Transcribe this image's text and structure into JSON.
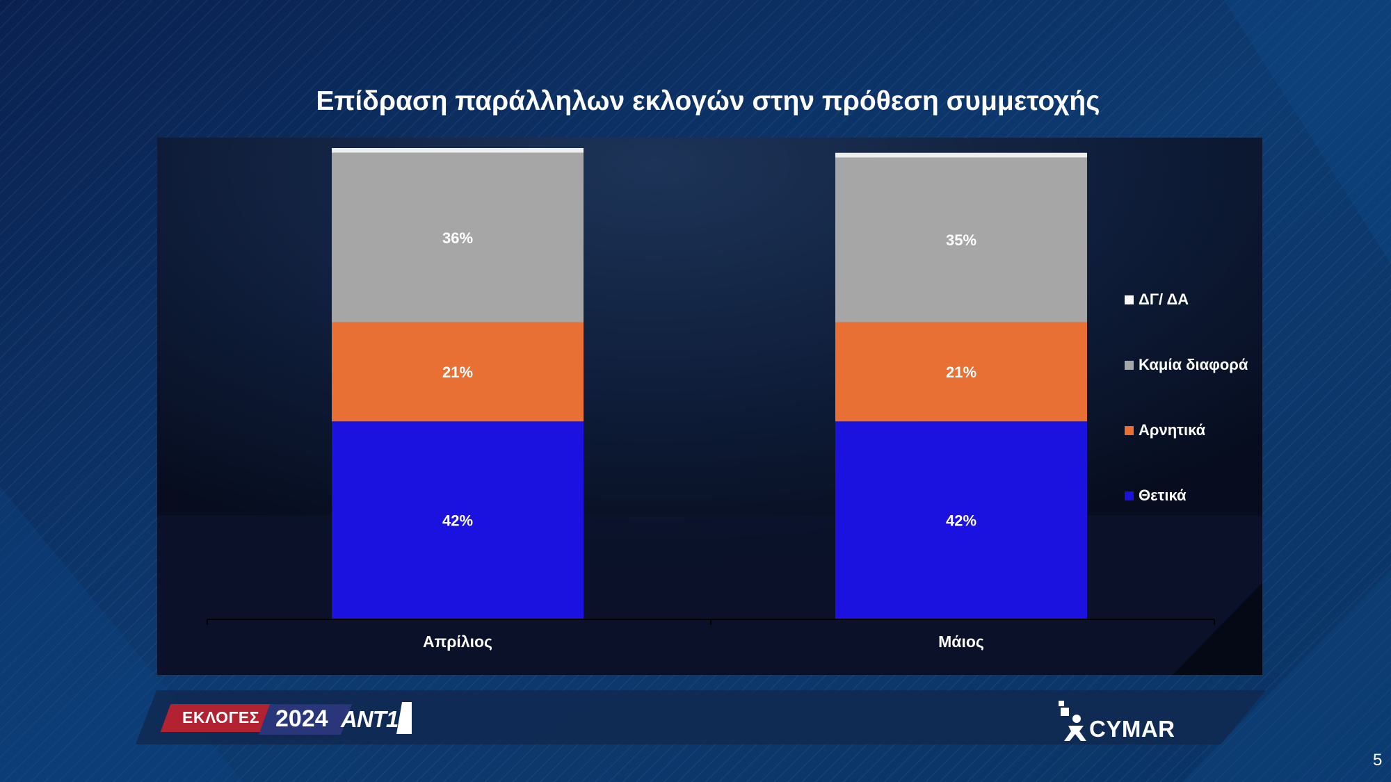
{
  "slide": {
    "title": "Επίδραση παράλληλων εκλογών στην πρόθεση συμμετοχής",
    "page_number": "5"
  },
  "chart_data": {
    "type": "bar",
    "stacked": true,
    "categories": [
      "Απρίλιος",
      "Μάιος"
    ],
    "series": [
      {
        "name": "Θετικά",
        "values": [
          42,
          42
        ],
        "color": "#1c12e0",
        "labels": [
          "42%",
          "42%"
        ]
      },
      {
        "name": "Αρνητικά",
        "values": [
          21,
          21
        ],
        "color": "#e87035",
        "labels": [
          "21%",
          "21%"
        ]
      },
      {
        "name": "Καμία διαφορά",
        "values": [
          36,
          35
        ],
        "color": "#a6a6a6",
        "labels": [
          "36%",
          "35%"
        ]
      },
      {
        "name": "ΔΓ/ ΔΑ",
        "values": [
          1,
          1
        ],
        "color": "#eeeeee",
        "labels": [
          "",
          ""
        ]
      }
    ],
    "ylim": [
      0,
      100
    ],
    "legend_position": "right",
    "grid": false
  },
  "legend": [
    {
      "label": "ΔΓ/ ΔΑ",
      "color": "#ffffff"
    },
    {
      "label": "Καμία διαφορά",
      "color": "#a6a6a6"
    },
    {
      "label": "Αρνητικά",
      "color": "#e87035"
    },
    {
      "label": "Θετικά",
      "color": "#1c12e0"
    }
  ],
  "footer": {
    "badge_text": "ΕΚΛΟΓΕΣ",
    "badge_year": "2024",
    "channel_logo": "ΑΝΤ1",
    "brand": "CYMAR"
  },
  "colors": {
    "background": "#0b2a55",
    "panel": "#0e1a33",
    "badge_red": "#b32230",
    "badge_blue": "#29367a"
  }
}
